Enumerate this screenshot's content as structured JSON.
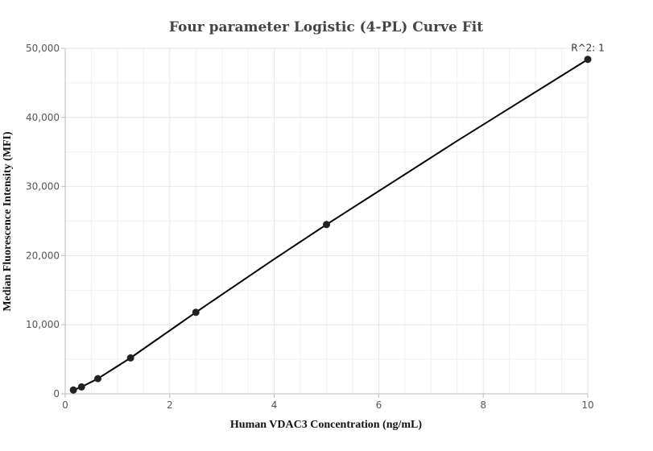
{
  "chart_data": {
    "type": "scatter",
    "title": "Four parameter Logistic (4-PL) Curve Fit",
    "xlabel": "Human VDAC3 Concentration  (ng/mL)",
    "ylabel": "Median Fluorescence Intensity (MFI)",
    "xlim": [
      0,
      10
    ],
    "ylim": [
      0,
      50000
    ],
    "x_ticks": [
      0,
      2,
      4,
      6,
      8,
      10
    ],
    "y_ticks": [
      0,
      10000,
      20000,
      30000,
      40000,
      50000
    ],
    "x_tick_labels": [
      "0",
      "2",
      "4",
      "6",
      "8",
      "10"
    ],
    "y_tick_labels": [
      "0",
      "10,000",
      "20,000",
      "30,000",
      "40,000",
      "50,000"
    ],
    "grid": true,
    "points": {
      "x": [
        0.156,
        0.3125,
        0.625,
        1.25,
        2.5,
        5,
        10
      ],
      "y": [
        550,
        1000,
        2200,
        5200,
        11800,
        24500,
        48400
      ]
    },
    "fit_curve": {
      "x": [
        0.156,
        0.3125,
        0.625,
        1.25,
        2.5,
        4,
        5,
        7.5,
        10
      ],
      "y": [
        550,
        1000,
        2200,
        5200,
        11800,
        19500,
        24500,
        36600,
        48400
      ]
    },
    "annotation": "R^2: 1",
    "colors": {
      "points": "#222222",
      "line": "#000000"
    }
  }
}
